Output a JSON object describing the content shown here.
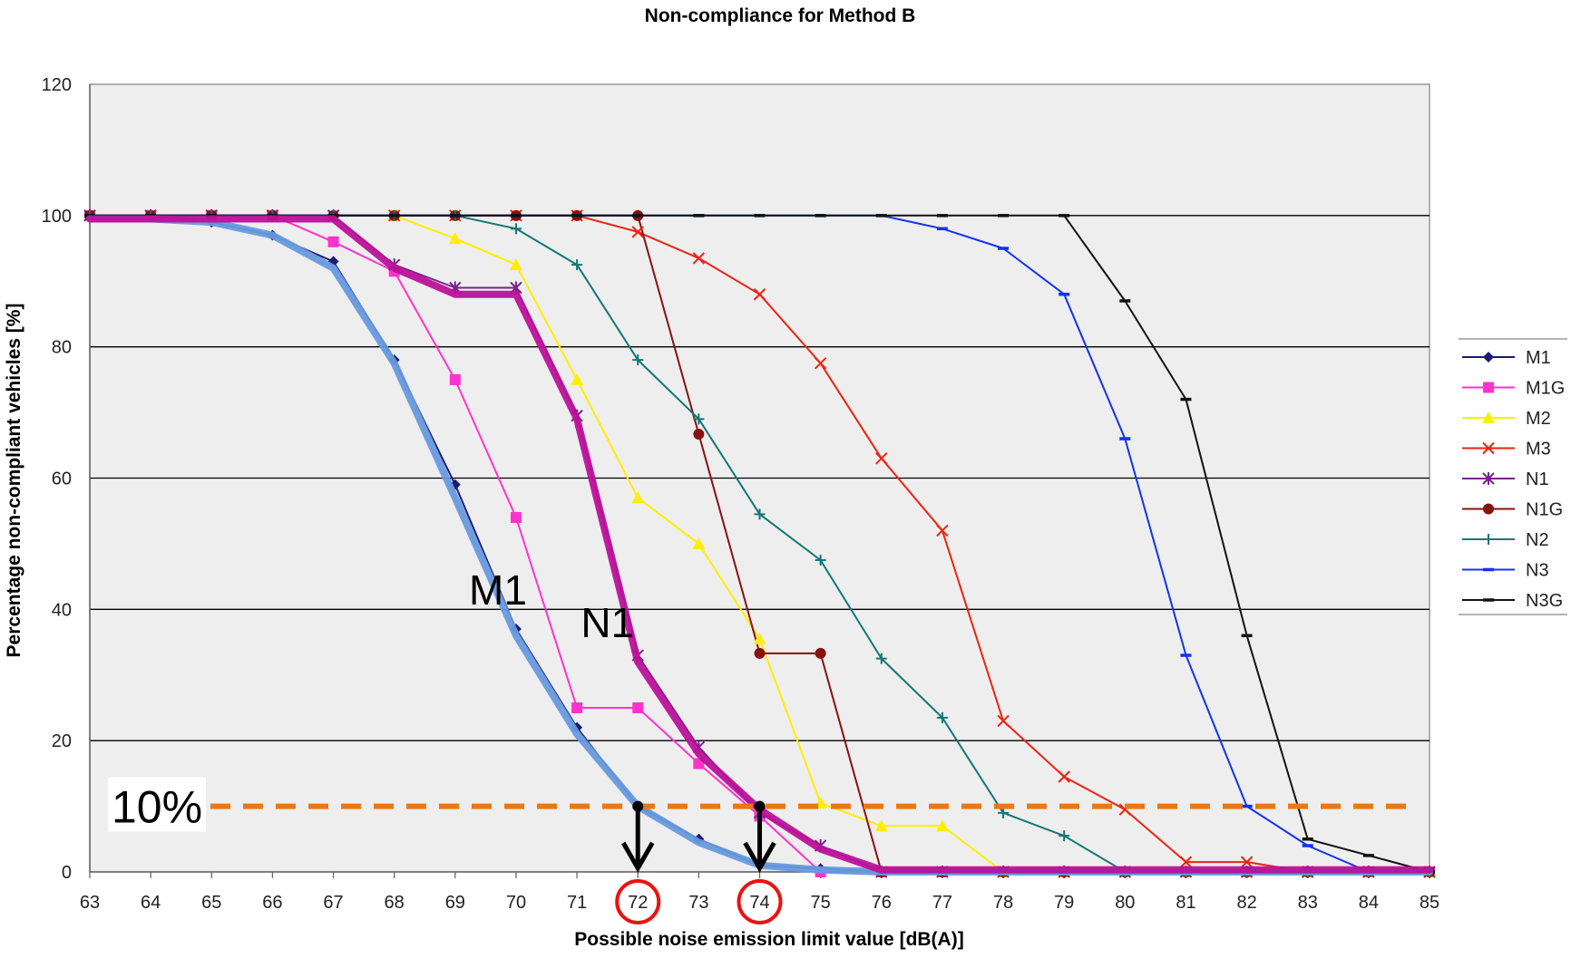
{
  "chart_data": {
    "type": "line",
    "title": "Non-compliance for Method B",
    "xlabel": "Possible noise emission limit value [dB(A)]",
    "ylabel": "Percentage non-compliant vehicles [%]",
    "xlim": [
      63,
      85
    ],
    "ylim": [
      0,
      120
    ],
    "x_ticks": [
      63,
      64,
      65,
      66,
      67,
      68,
      69,
      70,
      71,
      72,
      73,
      74,
      75,
      76,
      77,
      78,
      79,
      80,
      81,
      82,
      83,
      84,
      85
    ],
    "y_ticks": [
      0,
      20,
      40,
      60,
      80,
      100,
      120
    ],
    "grid": "horizontal",
    "plot_background": "#eeeeee",
    "legend_position": "right",
    "series": [
      {
        "name": "M1",
        "color": "#1a1a7a",
        "marker": "diamond",
        "x": [
          63,
          64,
          65,
          66,
          67,
          68,
          69,
          70,
          71,
          72,
          73,
          74,
          75,
          76,
          77,
          78,
          79,
          80,
          81,
          82,
          83,
          84,
          85
        ],
        "y": [
          100,
          100,
          99,
          97,
          93,
          78,
          59,
          37,
          22,
          10,
          5,
          1,
          0.5,
          0,
          0,
          0,
          0,
          0,
          0,
          0,
          0,
          0,
          0
        ]
      },
      {
        "name": "M1G",
        "color": "#ff33cc",
        "marker": "square",
        "x": [
          63,
          64,
          65,
          66,
          67,
          68,
          69,
          70,
          71,
          72,
          73,
          74,
          75,
          76,
          77,
          78,
          79,
          80,
          81,
          82,
          83,
          84,
          85
        ],
        "y": [
          100,
          100,
          100,
          100,
          96,
          91.5,
          75,
          54,
          25,
          25,
          16.5,
          8.5,
          0,
          0,
          0,
          0,
          0,
          0,
          0,
          0,
          0,
          0,
          0
        ]
      },
      {
        "name": "M2",
        "color": "#ffee00",
        "marker": "triangle",
        "x": [
          63,
          64,
          65,
          66,
          67,
          68,
          69,
          70,
          71,
          72,
          73,
          74,
          75,
          76,
          77,
          78,
          79,
          80,
          81,
          82,
          83,
          84,
          85
        ],
        "y": [
          100,
          100,
          100,
          100,
          100,
          100,
          96.5,
          92.5,
          75,
          57,
          50,
          35.5,
          10.5,
          7,
          7,
          0,
          0,
          0,
          0,
          0,
          0,
          0,
          0
        ]
      },
      {
        "name": "M3",
        "color": "#ee2211",
        "marker": "x",
        "x": [
          63,
          64,
          65,
          66,
          67,
          68,
          69,
          70,
          71,
          72,
          73,
          74,
          75,
          76,
          77,
          78,
          79,
          80,
          81,
          82,
          83,
          84,
          85
        ],
        "y": [
          100,
          100,
          100,
          100,
          100,
          100,
          100,
          100,
          100,
          97.5,
          93.5,
          88,
          77.5,
          63,
          52,
          23,
          14.5,
          9.5,
          1.5,
          1.5,
          0,
          0,
          0
        ]
      },
      {
        "name": "N1",
        "color": "#772288",
        "marker": "asterisk",
        "x": [
          63,
          64,
          65,
          66,
          67,
          68,
          69,
          70,
          71,
          72,
          73,
          74,
          75,
          76,
          77,
          78,
          79,
          80,
          81,
          82,
          83,
          84,
          85
        ],
        "y": [
          100,
          100,
          100,
          100,
          100,
          92.5,
          89,
          89,
          69.5,
          33,
          19,
          9,
          4,
          0,
          0,
          0,
          0,
          0,
          0,
          0,
          0,
          0,
          0
        ]
      },
      {
        "name": "N1G",
        "color": "#881111",
        "marker": "circle",
        "x": [
          63,
          64,
          65,
          66,
          67,
          68,
          69,
          70,
          71,
          72,
          73,
          74,
          75,
          76,
          77,
          78,
          79,
          80,
          81,
          82,
          83,
          84,
          85
        ],
        "y": [
          100,
          100,
          100,
          100,
          100,
          100,
          100,
          100,
          100,
          100,
          66.7,
          33.3,
          33.3,
          0,
          0,
          0,
          0,
          0,
          0,
          0,
          0,
          0,
          0
        ]
      },
      {
        "name": "N2",
        "color": "#117777",
        "marker": "plus",
        "x": [
          63,
          64,
          65,
          66,
          67,
          68,
          69,
          70,
          71,
          72,
          73,
          74,
          75,
          76,
          77,
          78,
          79,
          80,
          81,
          82,
          83,
          84,
          85
        ],
        "y": [
          100,
          100,
          100,
          100,
          100,
          100,
          100,
          98,
          92.5,
          78,
          69,
          54.5,
          47.5,
          32.5,
          23.5,
          9,
          5.5,
          0,
          0,
          0,
          0,
          0,
          0
        ]
      },
      {
        "name": "N3",
        "color": "#1133ee",
        "marker": "dash",
        "x": [
          63,
          64,
          65,
          66,
          67,
          68,
          69,
          70,
          71,
          72,
          73,
          74,
          75,
          76,
          77,
          78,
          79,
          80,
          81,
          82,
          83,
          84,
          85
        ],
        "y": [
          100,
          100,
          100,
          100,
          100,
          100,
          100,
          100,
          100,
          100,
          100,
          100,
          100,
          100,
          98,
          95,
          88,
          66,
          33,
          10,
          4,
          0,
          0
        ]
      },
      {
        "name": "N3G",
        "color": "#111111",
        "marker": "dash",
        "x": [
          63,
          64,
          65,
          66,
          67,
          68,
          69,
          70,
          71,
          72,
          73,
          74,
          75,
          76,
          77,
          78,
          79,
          80,
          81,
          82,
          83,
          84,
          85
        ],
        "y": [
          100,
          100,
          100,
          100,
          100,
          100,
          100,
          100,
          100,
          100,
          100,
          100,
          100,
          100,
          100,
          100,
          100,
          87,
          72,
          36,
          5,
          2.5,
          0
        ]
      }
    ],
    "highlight_curves": [
      {
        "label": "M1",
        "color": "#6699dd",
        "x": [
          63,
          64,
          65,
          66,
          67,
          68,
          69,
          70,
          71,
          72,
          73,
          74,
          75,
          76,
          77,
          78,
          79,
          80,
          81,
          82,
          83,
          84,
          85
        ],
        "y": [
          99.5,
          99.5,
          99,
          97,
          92,
          77.5,
          57,
          36,
          21,
          10,
          4.5,
          1,
          0.3,
          0,
          0,
          0,
          0,
          0,
          0,
          0,
          0,
          0,
          0
        ]
      },
      {
        "label": "N1",
        "color": "#bb1199",
        "x": [
          63,
          64,
          65,
          66,
          67,
          68,
          69,
          70,
          71,
          72,
          73,
          74,
          75,
          76,
          77,
          78,
          79,
          80,
          81,
          82,
          83,
          84,
          85
        ],
        "y": [
          99.5,
          99.5,
          99.5,
          99.5,
          99.5,
          92,
          88,
          88,
          69,
          32,
          18,
          9.5,
          3.5,
          0.3,
          0.3,
          0.3,
          0.3,
          0.3,
          0.3,
          0.3,
          0.3,
          0.3,
          0.3
        ]
      }
    ],
    "threshold": {
      "label": "10%",
      "value": 10,
      "color": "#ee7711"
    },
    "marked_values": {
      "values": [
        72,
        74
      ],
      "arrow_from": 10,
      "circle_color": "#ee1111"
    }
  }
}
